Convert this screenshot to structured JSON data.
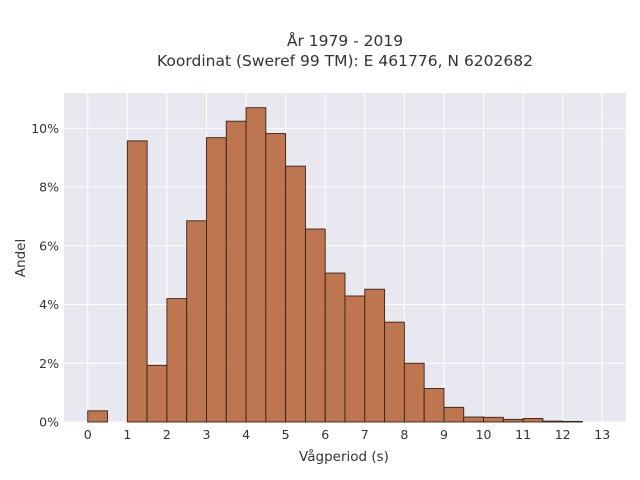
{
  "chart_data": {
    "type": "bar",
    "title_line1": "År 1979 - 2019",
    "title_line2": "Koordinat (Sweref 99 TM): E 461776, N 6202682",
    "xlabel": "Vågperiod (s)",
    "ylabel": "Andel",
    "bin_width": 0.5,
    "x_bin_starts": [
      0,
      0.5,
      1,
      1.5,
      2,
      2.5,
      3,
      3.5,
      4,
      4.5,
      5,
      5.5,
      6,
      6.5,
      7,
      7.5,
      8,
      8.5,
      9,
      9.5,
      10,
      10.5,
      11,
      11.5,
      12,
      12.5
    ],
    "values": [
      0.38,
      0,
      9.57,
      1.93,
      4.2,
      6.85,
      9.68,
      10.24,
      10.7,
      9.82,
      8.71,
      6.57,
      5.07,
      4.29,
      4.52,
      3.4,
      2.0,
      1.14,
      0.5,
      0.17,
      0.16,
      0.09,
      0.12,
      0.03,
      0.02,
      0.0
    ],
    "xlim": [
      -0.6,
      13.6
    ],
    "ylim": [
      0,
      11.2
    ],
    "x_ticks": [
      0,
      1,
      2,
      3,
      4,
      5,
      6,
      7,
      8,
      9,
      10,
      11,
      12,
      13
    ],
    "y_ticks": [
      0,
      2,
      4,
      6,
      8,
      10
    ],
    "y_tick_suffix": "%",
    "grid": true,
    "colors": {
      "bar_fill": "#b9693f",
      "bar_edge": "#3a2214",
      "plot_background": "#e8e8f0",
      "grid": "#ffffff",
      "text": "#333333"
    }
  }
}
